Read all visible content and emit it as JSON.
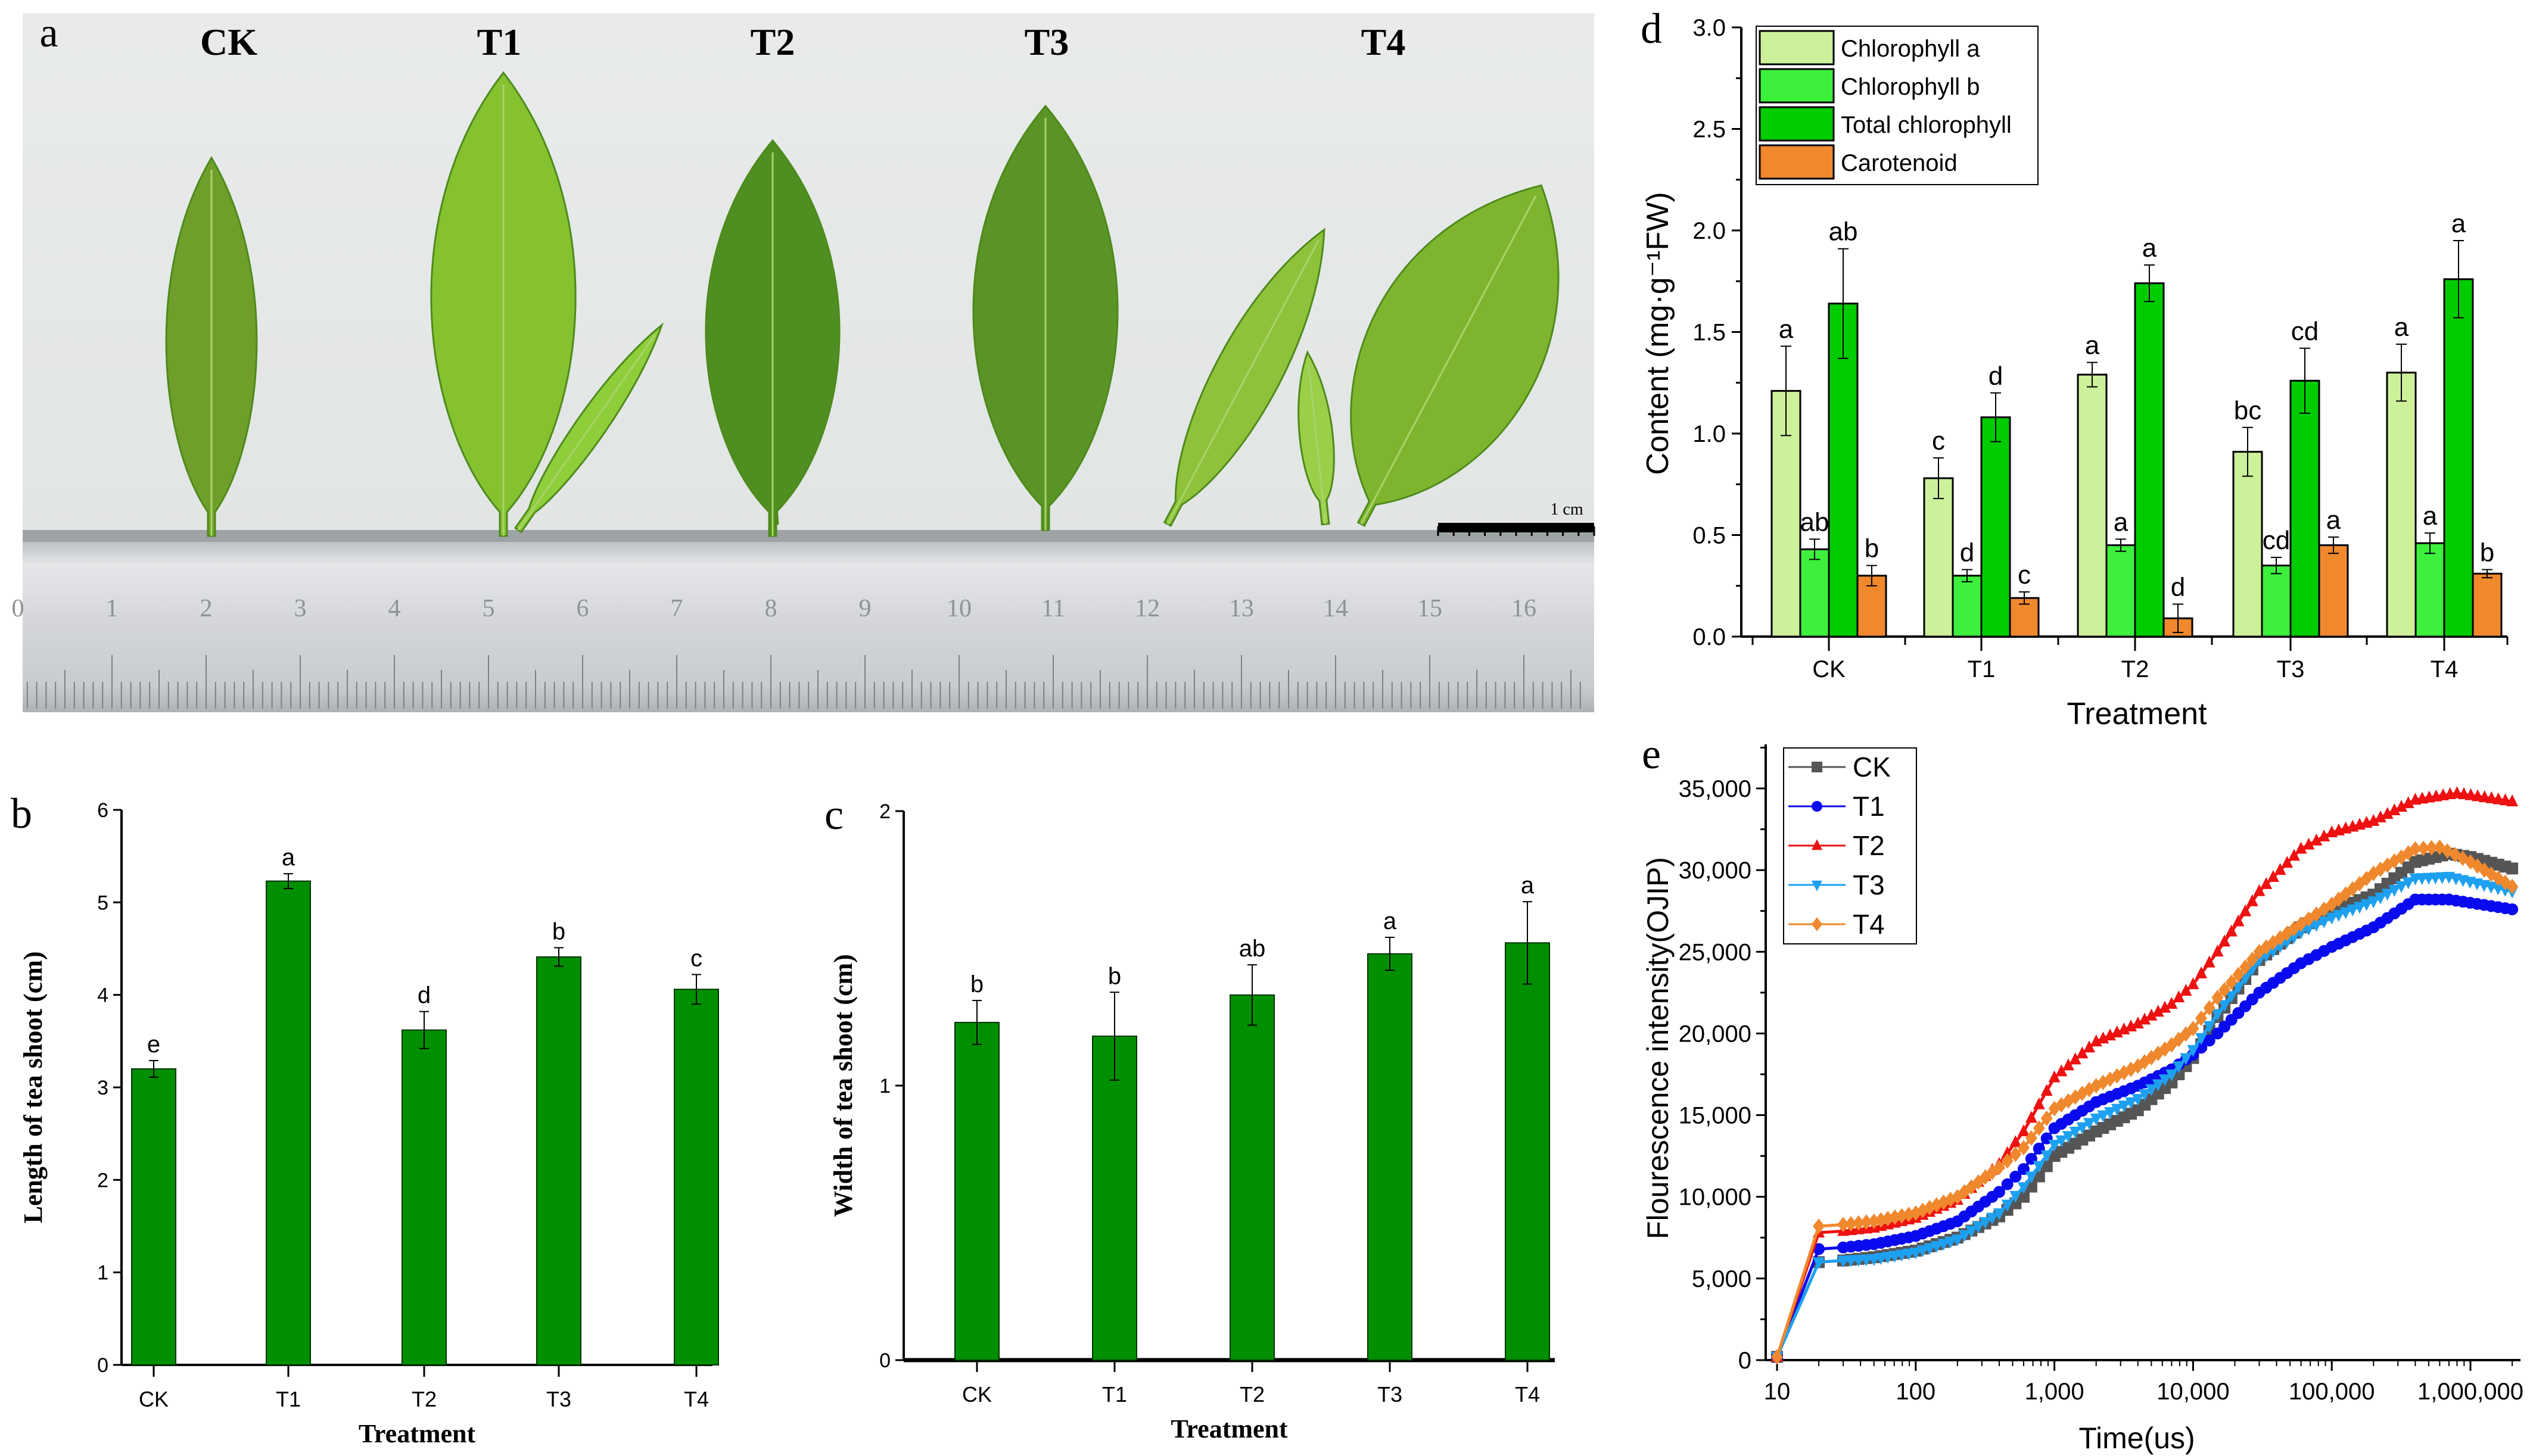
{
  "photo": {
    "panel": "a",
    "treatment_labels": [
      "CK",
      "T1",
      "T2",
      "T3",
      "T4"
    ],
    "scale_bar_label": "1 cm",
    "ruler_numbers": [
      "0",
      "1",
      "2",
      "3",
      "4",
      "5",
      "6",
      "7",
      "8",
      "9",
      "10",
      "11",
      "12",
      "13",
      "14",
      "15",
      "16"
    ]
  },
  "chart_data": [
    {
      "panel": "b",
      "type": "bar",
      "categories": [
        "CK",
        "T1",
        "T2",
        "T3",
        "T4"
      ],
      "values": [
        3.2,
        5.23,
        3.62,
        4.41,
        4.06
      ],
      "errors": [
        0.09,
        0.08,
        0.2,
        0.1,
        0.16
      ],
      "significance": [
        "e",
        "a",
        "d",
        "b",
        "c"
      ],
      "xlabel": "Treatment",
      "ylabel": "Length of tea shoot (cm)",
      "ylim": [
        0,
        6
      ],
      "yticks": [
        "0",
        "1",
        "2",
        "3",
        "4",
        "5",
        "6"
      ],
      "color": "#008f00"
    },
    {
      "panel": "c",
      "type": "bar",
      "categories": [
        "CK",
        "T1",
        "T2",
        "T3",
        "T4"
      ],
      "values": [
        1.23,
        1.18,
        1.33,
        1.48,
        1.52
      ],
      "errors": [
        0.08,
        0.16,
        0.11,
        0.06,
        0.15
      ],
      "significance": [
        "b",
        "b",
        "ab",
        "a",
        "a"
      ],
      "xlabel": "Treatment",
      "ylabel": "Width of tea shoot (cm)",
      "ylim": [
        0,
        2
      ],
      "yticks": [
        "0",
        "1",
        "2"
      ],
      "color": "#008f00"
    },
    {
      "panel": "d",
      "type": "bar",
      "categories": [
        "CK",
        "T1",
        "T2",
        "T3",
        "T4"
      ],
      "series": [
        {
          "name": "Chlorophyll a",
          "color": "#cdf09a",
          "values": [
            1.21,
            0.78,
            1.29,
            0.91,
            1.3
          ],
          "errors": [
            0.22,
            0.1,
            0.06,
            0.12,
            0.14
          ],
          "significance": [
            "a",
            "c",
            "a",
            "bc",
            "a"
          ]
        },
        {
          "name": "Chlorophyll b",
          "color": "#3cf03c",
          "values": [
            0.43,
            0.3,
            0.45,
            0.35,
            0.46
          ],
          "errors": [
            0.05,
            0.03,
            0.03,
            0.04,
            0.05
          ],
          "significance": [
            "ab",
            "d",
            "a",
            "cd",
            "a"
          ]
        },
        {
          "name": "Total chlorophyll",
          "color": "#00cc00",
          "values": [
            1.64,
            1.08,
            1.74,
            1.26,
            1.76
          ],
          "errors": [
            0.27,
            0.12,
            0.09,
            0.16,
            0.19
          ],
          "significance": [
            "ab",
            "d",
            "a",
            "cd",
            "a"
          ]
        },
        {
          "name": "Carotenoid",
          "color": "#f0882e",
          "values": [
            0.3,
            0.19,
            0.09,
            0.45,
            0.31
          ],
          "errors": [
            0.05,
            0.03,
            0.07,
            0.04,
            0.02
          ],
          "significance": [
            "b",
            "c",
            "d",
            "a",
            "b"
          ]
        }
      ],
      "xlabel": "Treatment",
      "ylabel": "Content (mg·g⁻¹FW)",
      "ylim": [
        0,
        3.0
      ],
      "yticks": [
        "0.0",
        "0.5",
        "1.0",
        "1.5",
        "2.0",
        "2.5",
        "3.0"
      ],
      "legend": "top-left"
    },
    {
      "panel": "e",
      "type": "line",
      "xscale": "log",
      "xlim": [
        10,
        2000000
      ],
      "xticks": [
        "10",
        "100",
        "1,000",
        "10,000",
        "100,000",
        "1,000,000"
      ],
      "ylim": [
        0,
        37500
      ],
      "yticks": [
        "0",
        "5,000",
        "10,000",
        "15,000",
        "20,000",
        "25,000",
        "30,000",
        "35,000"
      ],
      "xlabel": "Time(us)",
      "ylabel": "Flourescence intensity(OJIP)",
      "legend": "top-left",
      "series": [
        {
          "name": "CK",
          "color": "#555555",
          "marker": "square",
          "x": [
            10,
            20,
            30,
            50,
            100,
            200,
            400,
            600,
            1000,
            2000,
            4000,
            7000,
            10000,
            15000,
            30000,
            60000,
            100000,
            200000,
            400000,
            700000,
            1000000,
            2000000
          ],
          "y": [
            200,
            6000,
            6100,
            6300,
            6700,
            7500,
            8800,
            10000,
            12500,
            14000,
            15300,
            17000,
            18500,
            21000,
            24500,
            26500,
            27500,
            28500,
            30500,
            31000,
            30800,
            30100
          ]
        },
        {
          "name": "T1",
          "color": "#0a0aee",
          "marker": "circle",
          "x": [
            10,
            20,
            30,
            50,
            100,
            200,
            400,
            600,
            1000,
            2000,
            4000,
            7000,
            10000,
            15000,
            30000,
            60000,
            100000,
            200000,
            400000,
            700000,
            2000000
          ],
          "y": [
            200,
            6800,
            6900,
            7100,
            7600,
            8500,
            10300,
            11700,
            14200,
            15800,
            16800,
            17800,
            18700,
            20000,
            22500,
            24300,
            25300,
            26500,
            28200,
            28200,
            27600
          ]
        },
        {
          "name": "T2",
          "color": "#ee1111",
          "marker": "triangle-up",
          "x": [
            10,
            20,
            30,
            50,
            100,
            200,
            400,
            600,
            1000,
            2000,
            4000,
            7000,
            10000,
            15000,
            30000,
            60000,
            100000,
            200000,
            400000,
            800000,
            2000000
          ],
          "y": [
            200,
            7800,
            7900,
            8100,
            8700,
            9800,
            12000,
            14000,
            17300,
            19500,
            20600,
            21800,
            23000,
            25000,
            28700,
            31300,
            32300,
            33000,
            34300,
            34700,
            34200
          ]
        },
        {
          "name": "T3",
          "color": "#1ea0f0",
          "marker": "triangle-down",
          "x": [
            10,
            20,
            30,
            50,
            100,
            200,
            400,
            600,
            1000,
            2000,
            4000,
            7000,
            10000,
            15000,
            30000,
            60000,
            100000,
            200000,
            400000,
            700000,
            2000000
          ],
          "y": [
            200,
            6000,
            6100,
            6200,
            6600,
            7400,
            9000,
            10600,
            13200,
            14800,
            16000,
            17500,
            19000,
            21200,
            24500,
            26200,
            27100,
            28100,
            29500,
            29600,
            28700
          ]
        },
        {
          "name": "T4",
          "color": "#f0882e",
          "marker": "diamond",
          "x": [
            10,
            20,
            30,
            50,
            100,
            200,
            400,
            600,
            1000,
            2000,
            4000,
            7000,
            10000,
            15000,
            30000,
            60000,
            100000,
            200000,
            400000,
            600000,
            1000000,
            2000000
          ],
          "y": [
            200,
            8200,
            8300,
            8500,
            9000,
            10000,
            11800,
            13000,
            15400,
            16800,
            18000,
            19300,
            20300,
            22200,
            25000,
            26700,
            27900,
            29800,
            31300,
            31400,
            30500,
            29000
          ]
        }
      ]
    }
  ]
}
